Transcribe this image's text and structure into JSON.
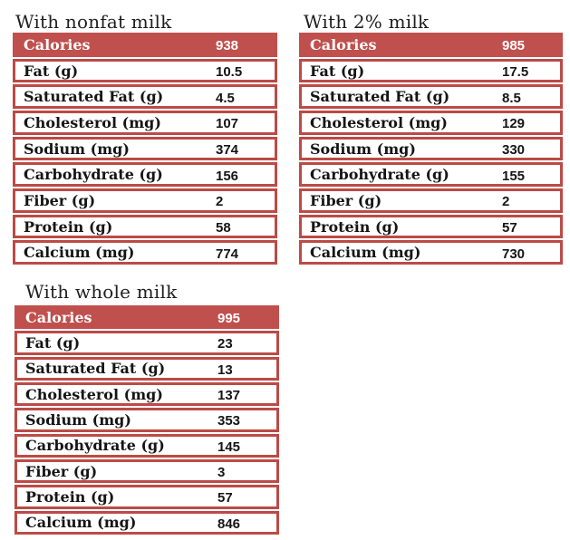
{
  "colors": {
    "accent_red": "#c0504d",
    "border_red": "#bc4a46",
    "header_text": "#ffffff",
    "body_text": "#151515",
    "title_text": "#1f1f1f",
    "background": "#ffffff"
  },
  "tables": [
    {
      "title": "With nonfat milk",
      "header": {
        "label": "Calories",
        "value": "938"
      },
      "rows": [
        {
          "label": "Fat (g)",
          "value": "10.5"
        },
        {
          "label": "Saturated Fat (g)",
          "value": "4.5"
        },
        {
          "label": "Cholesterol (mg)",
          "value": "107"
        },
        {
          "label": "Sodium (mg)",
          "value": "374"
        },
        {
          "label": "Carbohydrate (g)",
          "value": "156"
        },
        {
          "label": "Fiber (g)",
          "value": "2"
        },
        {
          "label": "Protein (g)",
          "value": "58"
        },
        {
          "label": "Calcium (mg)",
          "value": "774"
        }
      ]
    },
    {
      "title": "With 2% milk",
      "header": {
        "label": "Calories",
        "value": "985"
      },
      "rows": [
        {
          "label": "Fat (g)",
          "value": "17.5"
        },
        {
          "label": "Saturated Fat (g)",
          "value": "8.5"
        },
        {
          "label": "Cholesterol (mg)",
          "value": "129"
        },
        {
          "label": "Sodium (mg)",
          "value": "330"
        },
        {
          "label": "Carbohydrate (g)",
          "value": "155"
        },
        {
          "label": "Fiber (g)",
          "value": "2"
        },
        {
          "label": "Protein (g)",
          "value": "57"
        },
        {
          "label": "Calcium (mg)",
          "value": "730"
        }
      ]
    },
    {
      "title": "With whole milk",
      "header": {
        "label": "Calories",
        "value": "995"
      },
      "rows": [
        {
          "label": "Fat (g)",
          "value": "23"
        },
        {
          "label": "Saturated Fat (g)",
          "value": "13"
        },
        {
          "label": "Cholesterol (mg)",
          "value": "137"
        },
        {
          "label": "Sodium (mg)",
          "value": "353"
        },
        {
          "label": "Carbohydrate (g)",
          "value": "145"
        },
        {
          "label": "Fiber (g)",
          "value": "3"
        },
        {
          "label": "Protein (g)",
          "value": "57"
        },
        {
          "label": "Calcium (mg)",
          "value": "846"
        }
      ]
    }
  ]
}
